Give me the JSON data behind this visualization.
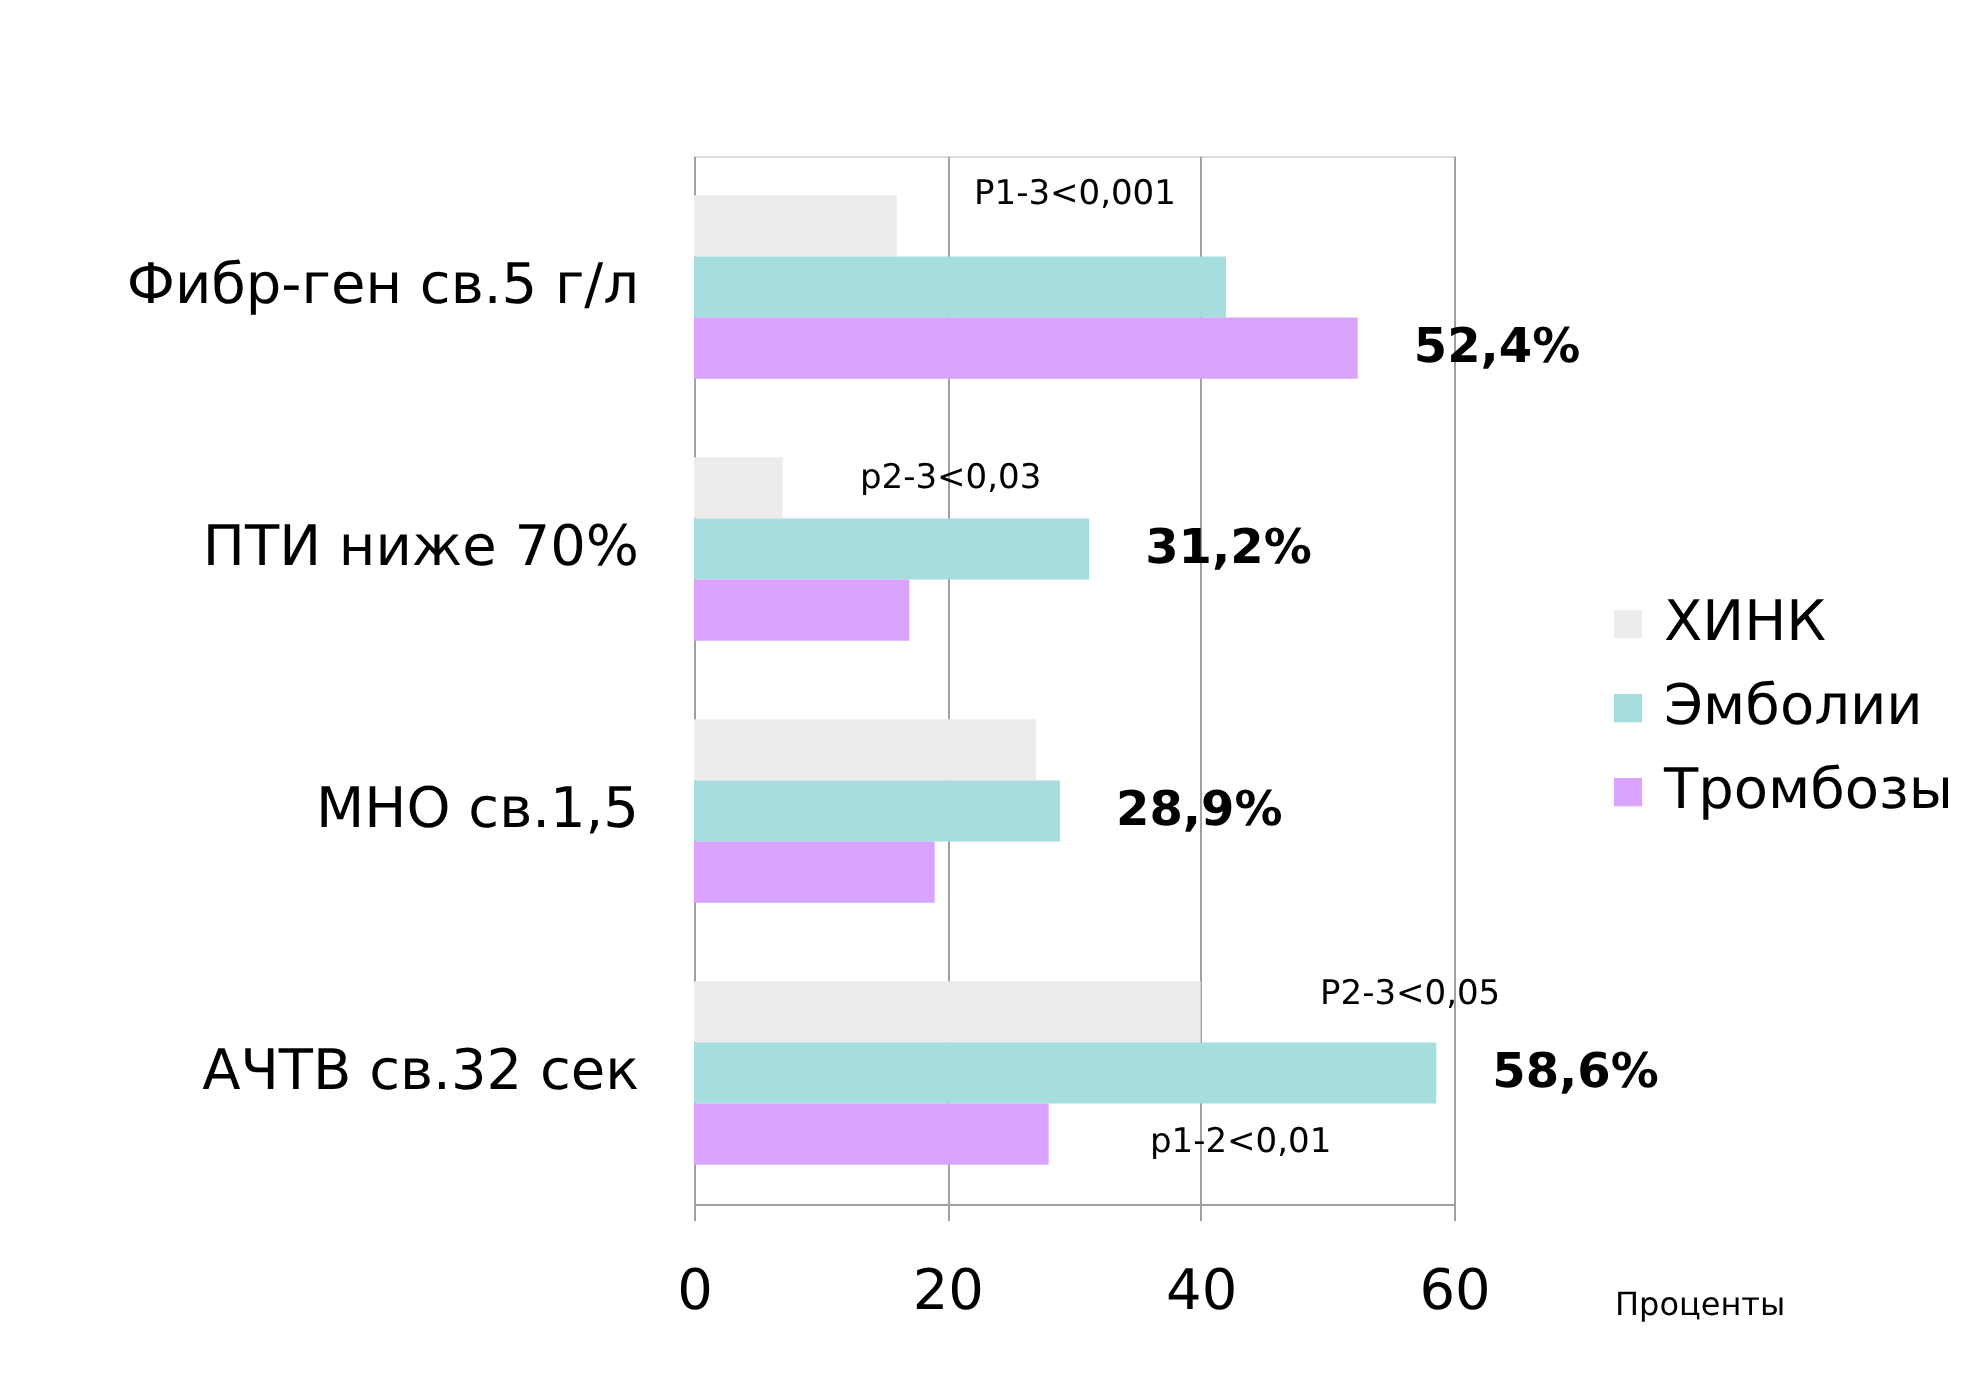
{
  "chart_data": {
    "type": "bar",
    "orientation": "horizontal",
    "categories": [
      "Фибр-ген св.5 г/л",
      "ПТИ ниже 70%",
      "МНО св.1,5",
      "АЧТВ св.32 сек"
    ],
    "series": [
      {
        "name": "ХИНК",
        "color": "#ececec",
        "values": [
          16,
          7,
          27,
          40
        ]
      },
      {
        "name": "Эмболии",
        "color": "#a6dede",
        "values": [
          42,
          31.2,
          28.9,
          58.6
        ],
        "value_labels": [
          null,
          "31,2%",
          "28,9%",
          "58,6%"
        ]
      },
      {
        "name": "Тромбозы",
        "color": "#d9a3ff",
        "values": [
          52.4,
          17,
          19,
          28
        ],
        "value_labels": [
          "52,4%",
          null,
          null,
          null
        ]
      }
    ],
    "xlabel": "Проценты",
    "xlim": [
      0,
      60
    ],
    "xticks": [
      0,
      20,
      40,
      60
    ],
    "grid": "x",
    "legend": "right",
    "annotations": [
      "P1-3<0,001",
      "p2-3<0,03",
      "P2-3<0,05",
      "p1-2<0,01"
    ]
  }
}
